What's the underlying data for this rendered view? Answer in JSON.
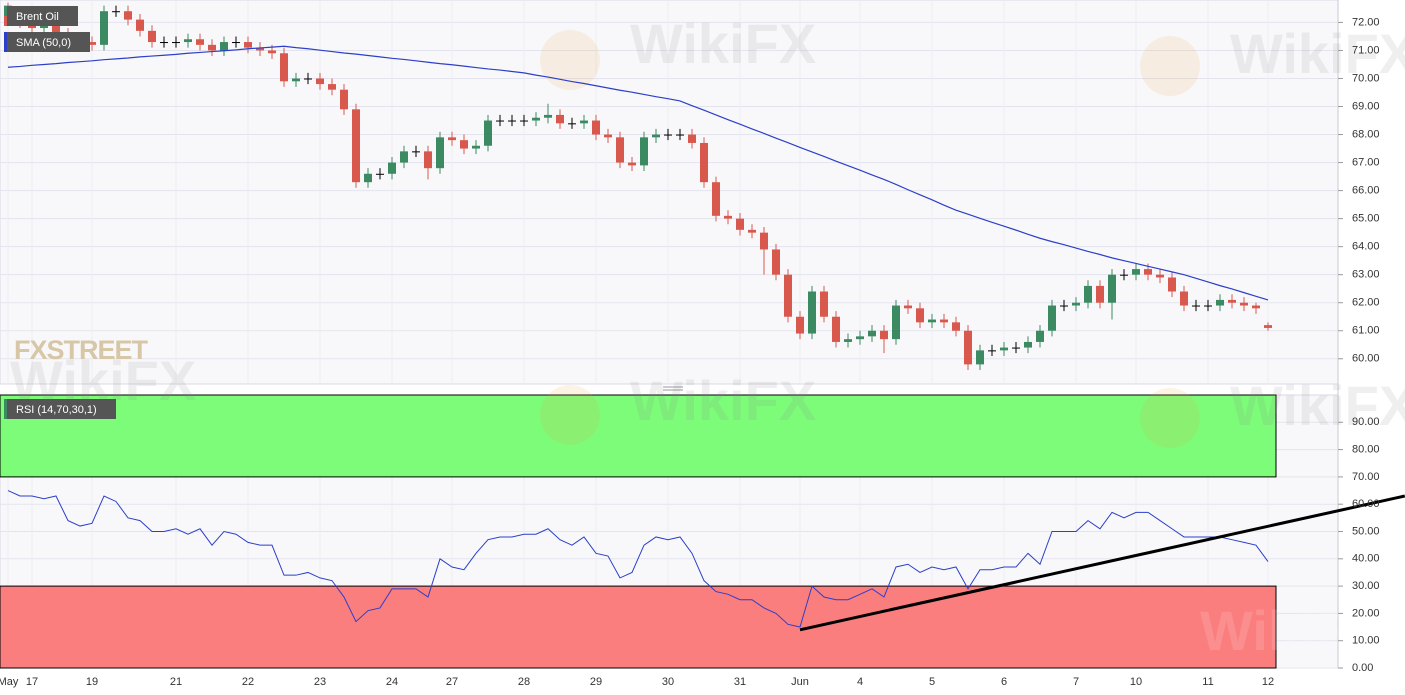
{
  "watermark": "WikiFX",
  "logo": "FXSTREET",
  "chart_data": [
    {
      "type": "candlestick",
      "ylim": [
        59.1,
        72.8
      ],
      "yticks": [
        {
          "value": 60,
          "label": "60.00"
        },
        {
          "value": 61,
          "label": "61.00"
        },
        {
          "value": 62,
          "label": "62.00"
        },
        {
          "value": 63,
          "label": "63.00"
        },
        {
          "value": 64,
          "label": "64.00"
        },
        {
          "value": 65,
          "label": "65.00"
        },
        {
          "value": 66,
          "label": "66.00"
        },
        {
          "value": 67,
          "label": "67.00"
        },
        {
          "value": 68,
          "label": "68.00"
        },
        {
          "value": 69,
          "label": "69.00"
        },
        {
          "value": 70,
          "label": "70.00"
        },
        {
          "value": 71,
          "label": "71.00"
        },
        {
          "value": 72,
          "label": "72.00"
        }
      ],
      "grid": true,
      "series": [
        {
          "name": "Brent Oil",
          "up_color": "#3c8a62",
          "down_color": "#d9584e",
          "open": [
            72.6,
            72.3,
            72.0,
            71.8,
            71.9,
            71.6,
            71.3,
            71.3,
            71.2,
            72.4,
            72.4,
            72.1,
            71.7,
            71.3,
            71.3,
            71.3,
            71.4,
            71.2,
            71.0,
            71.3,
            71.3,
            71.1,
            71.0,
            70.9,
            69.9,
            70.0,
            70.0,
            69.8,
            69.6,
            68.9,
            66.3,
            66.6,
            66.6,
            67.0,
            67.4,
            67.4,
            66.8,
            67.9,
            67.8,
            67.5,
            67.6,
            68.5,
            68.5,
            68.5,
            68.5,
            68.6,
            68.7,
            68.4,
            68.4,
            68.5,
            68.0,
            67.9,
            67.0,
            66.9,
            67.9,
            68.0,
            68.0,
            68.0,
            67.7,
            66.3,
            65.1,
            65.0,
            64.6,
            64.5,
            63.9,
            63.0,
            61.5,
            60.9,
            62.4,
            61.5,
            60.6,
            60.7,
            60.8,
            61.0,
            60.7,
            61.9,
            61.8,
            61.3,
            61.4,
            61.3,
            61.0,
            59.8,
            60.3,
            60.3,
            60.4,
            60.4,
            60.6,
            61.0,
            61.9,
            61.9,
            62.0,
            62.6,
            62.0,
            63.0,
            63.0,
            63.2,
            63.0,
            62.9,
            62.4,
            61.9,
            61.9,
            61.9,
            62.1,
            62.0,
            61.9,
            61.2
          ],
          "high": [
            72.7,
            72.5,
            72.2,
            72.1,
            72.1,
            71.8,
            71.5,
            71.5,
            72.6,
            72.6,
            72.6,
            72.3,
            71.9,
            71.5,
            71.5,
            71.6,
            71.6,
            71.4,
            71.5,
            71.5,
            71.5,
            71.3,
            71.2,
            71.1,
            70.2,
            70.2,
            70.2,
            70.0,
            69.8,
            69.1,
            66.8,
            66.8,
            67.2,
            67.6,
            67.6,
            67.6,
            68.1,
            68.1,
            68.0,
            67.8,
            68.7,
            68.7,
            68.7,
            68.7,
            68.8,
            69.1,
            68.9,
            68.6,
            68.7,
            68.7,
            68.2,
            68.1,
            67.2,
            68.1,
            68.2,
            68.2,
            68.2,
            68.2,
            67.9,
            66.5,
            65.3,
            65.2,
            64.8,
            64.7,
            64.1,
            63.2,
            61.7,
            62.6,
            62.6,
            61.7,
            60.9,
            61.0,
            61.2,
            61.2,
            62.1,
            62.1,
            62.0,
            61.6,
            61.6,
            61.5,
            61.2,
            60.5,
            60.5,
            60.6,
            60.6,
            60.8,
            61.2,
            62.1,
            62.1,
            62.2,
            62.8,
            62.8,
            63.2,
            63.2,
            63.4,
            63.4,
            63.2,
            63.1,
            62.6,
            62.1,
            62.1,
            62.3,
            62.3,
            62.2,
            62.0,
            61.3
          ],
          "low": [
            72.1,
            71.8,
            71.6,
            71.6,
            71.4,
            71.1,
            71.1,
            71.0,
            71.0,
            72.2,
            71.9,
            71.5,
            71.1,
            71.1,
            71.1,
            71.1,
            71.0,
            70.8,
            70.8,
            71.1,
            70.9,
            70.8,
            70.7,
            69.7,
            69.7,
            69.8,
            69.6,
            69.4,
            68.7,
            66.1,
            66.1,
            66.4,
            66.4,
            66.8,
            67.2,
            66.4,
            66.6,
            67.6,
            67.3,
            67.3,
            67.4,
            68.3,
            68.3,
            68.3,
            68.3,
            68.4,
            68.2,
            68.2,
            68.2,
            67.8,
            67.7,
            66.8,
            66.7,
            66.7,
            67.7,
            67.8,
            67.8,
            67.5,
            66.1,
            64.9,
            64.8,
            64.4,
            64.3,
            63.0,
            62.8,
            61.3,
            60.7,
            60.7,
            61.3,
            60.4,
            60.4,
            60.5,
            60.6,
            60.2,
            60.5,
            61.6,
            61.1,
            61.1,
            61.1,
            60.8,
            59.6,
            59.6,
            60.1,
            60.1,
            60.2,
            60.2,
            60.4,
            60.8,
            61.7,
            61.7,
            61.8,
            61.8,
            61.4,
            62.8,
            62.8,
            62.8,
            62.7,
            62.2,
            61.7,
            61.7,
            61.7,
            61.7,
            61.8,
            61.7,
            61.6,
            61.0
          ],
          "close": [
            72.3,
            72.0,
            71.8,
            71.9,
            71.6,
            71.3,
            71.3,
            71.2,
            72.4,
            72.4,
            72.1,
            71.7,
            71.3,
            71.3,
            71.3,
            71.4,
            71.2,
            71.0,
            71.3,
            71.3,
            71.1,
            71.0,
            70.9,
            69.9,
            70.0,
            70.0,
            69.8,
            69.6,
            68.9,
            66.3,
            66.6,
            66.6,
            67.0,
            67.4,
            67.4,
            66.8,
            67.9,
            67.8,
            67.5,
            67.6,
            68.5,
            68.5,
            68.5,
            68.5,
            68.6,
            68.7,
            68.4,
            68.4,
            68.5,
            68.0,
            67.9,
            67.0,
            66.9,
            67.9,
            68.0,
            68.0,
            68.0,
            67.7,
            66.3,
            65.1,
            65.0,
            64.6,
            64.5,
            63.9,
            63.0,
            61.5,
            60.9,
            62.4,
            61.5,
            60.6,
            60.7,
            60.8,
            61.0,
            60.7,
            61.9,
            61.8,
            61.3,
            61.4,
            61.3,
            61.0,
            59.8,
            60.3,
            60.3,
            60.4,
            60.4,
            60.6,
            61.0,
            61.9,
            61.9,
            62.0,
            62.6,
            62.0,
            63.0,
            63.0,
            63.2,
            63.0,
            62.9,
            62.4,
            61.9,
            61.9,
            61.9,
            62.1,
            62.0,
            61.9,
            61.8,
            61.1
          ]
        },
        {
          "name": "SMA (50,0)",
          "color": "#2c3fc8",
          "values": [
            70.4,
            70.43,
            70.47,
            70.5,
            70.53,
            70.57,
            70.6,
            70.63,
            70.67,
            70.7,
            70.73,
            70.77,
            70.8,
            70.83,
            70.86,
            70.9,
            70.93,
            70.96,
            70.99,
            71.02,
            71.06,
            71.09,
            71.12,
            71.15,
            71.1,
            71.06,
            71.01,
            70.96,
            70.91,
            70.87,
            70.82,
            70.77,
            70.72,
            70.68,
            70.63,
            70.58,
            70.53,
            70.49,
            70.44,
            70.39,
            70.34,
            70.3,
            70.25,
            70.2,
            70.12,
            70.05,
            69.97,
            69.89,
            69.82,
            69.74,
            69.66,
            69.58,
            69.51,
            69.43,
            69.35,
            69.28,
            69.2,
            69.03,
            68.87,
            68.7,
            68.53,
            68.37,
            68.2,
            68.04,
            67.87,
            67.71,
            67.54,
            67.38,
            67.22,
            67.05,
            66.89,
            66.73,
            66.56,
            66.4,
            66.22,
            66.03,
            65.85,
            65.67,
            65.48,
            65.3,
            65.16,
            65.01,
            64.87,
            64.73,
            64.59,
            64.44,
            64.3,
            64.18,
            64.07,
            63.95,
            63.83,
            63.72,
            63.6,
            63.5,
            63.4,
            63.3,
            63.2,
            63.1,
            63.0,
            62.87,
            62.74,
            62.61,
            62.49,
            62.36,
            62.23,
            62.1
          ]
        }
      ]
    },
    {
      "type": "line",
      "categories": [
        "May",
        null,
        "17",
        null,
        null,
        null,
        null,
        "19",
        null,
        null,
        null,
        null,
        null,
        null,
        "21",
        null,
        null,
        null,
        null,
        null,
        "22",
        null,
        null,
        null,
        null,
        null,
        "23",
        null,
        null,
        null,
        null,
        null,
        "24",
        null,
        null,
        null,
        null,
        "27",
        null,
        null,
        null,
        null,
        null,
        "28",
        null,
        null,
        null,
        null,
        null,
        "29",
        null,
        null,
        null,
        null,
        null,
        "30",
        null,
        null,
        null,
        null,
        null,
        "31",
        null,
        null,
        null,
        null,
        "Jun",
        null,
        null,
        null,
        null,
        "4",
        null,
        null,
        null,
        null,
        null,
        "5",
        null,
        null,
        null,
        null,
        null,
        "6",
        null,
        null,
        null,
        null,
        null,
        "7",
        null,
        null,
        null,
        null,
        "10",
        null,
        null,
        null,
        null,
        null,
        "11",
        null,
        null,
        null,
        null,
        "12"
      ],
      "ylim": [
        0,
        100
      ],
      "yticks": [
        {
          "value": 0,
          "label": "0.00"
        },
        {
          "value": 10,
          "label": "10.00"
        },
        {
          "value": 20,
          "label": "20.00"
        },
        {
          "value": 30,
          "label": "30.00"
        },
        {
          "value": 40,
          "label": "40.00"
        },
        {
          "value": 50,
          "label": "50.00"
        },
        {
          "value": 60,
          "label": "60.00"
        },
        {
          "value": 70,
          "label": "70.00"
        },
        {
          "value": 80,
          "label": "80.00"
        },
        {
          "value": 90,
          "label": "90.00"
        }
      ],
      "grid": true,
      "bands": [
        {
          "range": [
            70,
            100
          ],
          "color": "#7dfc7a"
        },
        {
          "range": [
            0,
            30
          ],
          "color": "#fb7e7e"
        }
      ],
      "series": [
        {
          "name": "RSI (14,70,30,1)",
          "color": "#2c3fc8",
          "values": [
            65,
            63,
            63,
            62,
            63,
            54,
            52,
            53,
            63,
            61,
            55,
            54,
            50,
            50,
            51,
            49,
            51,
            45,
            50,
            49,
            46,
            45,
            45,
            34,
            34,
            35,
            33,
            32,
            26,
            17,
            21,
            22,
            29,
            29,
            29,
            26,
            40,
            37,
            36,
            42,
            47,
            48,
            48,
            49,
            49,
            51,
            47,
            45,
            48,
            42,
            41,
            33,
            35,
            45,
            48,
            47,
            48,
            42,
            32,
            28,
            27,
            25,
            25,
            22,
            20,
            16,
            15,
            30,
            26,
            25,
            25,
            27,
            29,
            26,
            37,
            38,
            35,
            37,
            36,
            37,
            29,
            36,
            36,
            37,
            37,
            42,
            38,
            50,
            50,
            50,
            54,
            51,
            57,
            55,
            57,
            57,
            54,
            51,
            48,
            48,
            48,
            48,
            47,
            46,
            45,
            39
          ]
        }
      ],
      "trendline": {
        "x": [
          66,
          116.4
        ],
        "values": [
          14,
          63
        ],
        "color": "#000000"
      }
    }
  ]
}
